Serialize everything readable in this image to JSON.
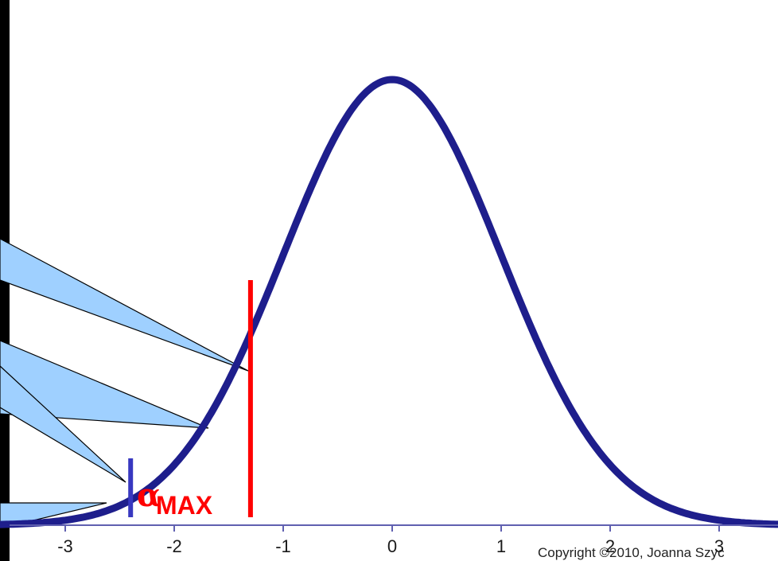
{
  "chart_data": {
    "type": "line",
    "title": "",
    "xlabel": "",
    "ylabel": "",
    "xlim": [
      -3.5,
      3.5
    ],
    "x_ticks": [
      "-3",
      "-2",
      "-1",
      "0",
      "1",
      "2",
      "3"
    ],
    "x_tick_values": [
      -3,
      -2,
      -1,
      0,
      1,
      2,
      3
    ],
    "curve": "standard normal density",
    "line_color": "#1e1e8c",
    "axis_color": "#6060b0",
    "grid": false,
    "critical_lines": [
      {
        "name": "red-line",
        "x": -1.3,
        "color": "#ff0000"
      },
      {
        "name": "blue-line",
        "x": -2.4,
        "color": "#3838c0"
      }
    ],
    "annotation": {
      "symbol": "α",
      "subscript": "MAX"
    }
  },
  "callouts": {
    "fill": "#9fd0ff",
    "count": 4
  },
  "copyright": "Copyright ©2010, Joanna Szyc"
}
